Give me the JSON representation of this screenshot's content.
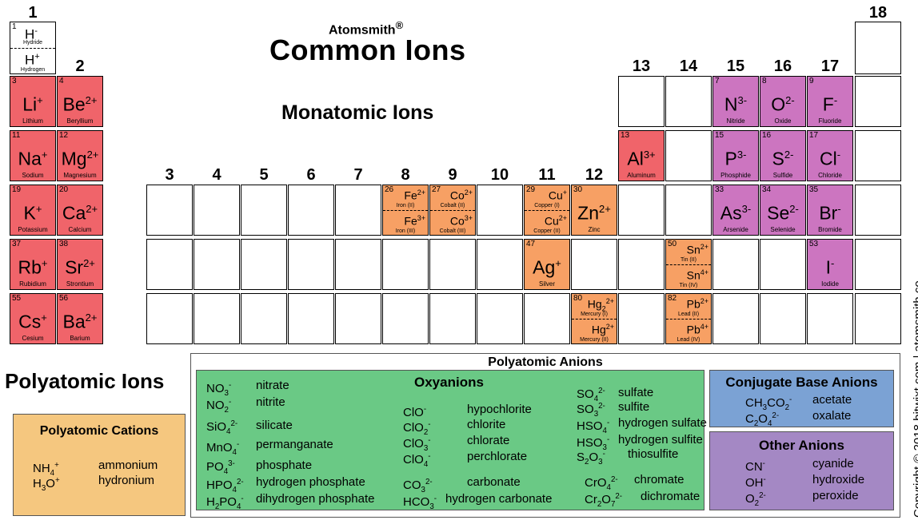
{
  "header": {
    "brand": "Atomsmith",
    "reg": "®",
    "title": "Common Ions",
    "section_monatomic": "Monatomic Ions",
    "section_polyatomic": "Polyatomic Ions",
    "copyright": "Copyright © 2018 bitwixt.com | atomsmith.co"
  },
  "groups": [
    "1",
    "2",
    "3",
    "4",
    "5",
    "6",
    "7",
    "8",
    "9",
    "10",
    "11",
    "12",
    "13",
    "14",
    "15",
    "16",
    "17",
    "18"
  ],
  "hydrogen": {
    "num": "1",
    "top_ion": "H",
    "top_charge": "-",
    "top_name": "Hydride",
    "bot_ion": "H",
    "bot_charge": "+",
    "bot_name": "Hydrogen"
  },
  "elements": {
    "Li": {
      "num": "3",
      "sym": "Li",
      "charge": "+",
      "name": "Lithium"
    },
    "Be": {
      "num": "4",
      "sym": "Be",
      "charge": "2+",
      "name": "Beryllium"
    },
    "Na": {
      "num": "11",
      "sym": "Na",
      "charge": "+",
      "name": "Sodium"
    },
    "Mg": {
      "num": "12",
      "sym": "Mg",
      "charge": "2+",
      "name": "Magnesium"
    },
    "K": {
      "num": "19",
      "sym": "K",
      "charge": "+",
      "name": "Potassium"
    },
    "Ca": {
      "num": "20",
      "sym": "Ca",
      "charge": "2+",
      "name": "Calcium"
    },
    "Rb": {
      "num": "37",
      "sym": "Rb",
      "charge": "+",
      "name": "Rubidium"
    },
    "Sr": {
      "num": "38",
      "sym": "Sr",
      "charge": "2+",
      "name": "Strontium"
    },
    "Cs": {
      "num": "55",
      "sym": "Cs",
      "charge": "+",
      "name": "Cesium"
    },
    "Ba": {
      "num": "56",
      "sym": "Ba",
      "charge": "2+",
      "name": "Barium"
    },
    "Al": {
      "num": "13",
      "sym": "Al",
      "charge": "3+",
      "name": "Aluminum"
    },
    "N": {
      "num": "7",
      "sym": "N",
      "charge": "3-",
      "name": "Nitride"
    },
    "O": {
      "num": "8",
      "sym": "O",
      "charge": "2-",
      "name": "Oxide"
    },
    "F": {
      "num": "9",
      "sym": "F",
      "charge": "-",
      "name": "Fluoride"
    },
    "P": {
      "num": "15",
      "sym": "P",
      "charge": "3-",
      "name": "Phosphide"
    },
    "S": {
      "num": "16",
      "sym": "S",
      "charge": "2-",
      "name": "Sulfide"
    },
    "Cl": {
      "num": "17",
      "sym": "Cl",
      "charge": "-",
      "name": "Chloride"
    },
    "As": {
      "num": "33",
      "sym": "As",
      "charge": "3-",
      "name": "Arsenide"
    },
    "Se": {
      "num": "34",
      "sym": "Se",
      "charge": "2-",
      "name": "Selenide"
    },
    "Br": {
      "num": "35",
      "sym": "Br",
      "charge": "-",
      "name": "Bromide"
    },
    "I": {
      "num": "53",
      "sym": "I",
      "charge": "-",
      "name": "Iodide"
    },
    "Zn": {
      "num": "30",
      "sym": "Zn",
      "charge": "2+",
      "name": "Zinc"
    },
    "Ag": {
      "num": "47",
      "sym": "Ag",
      "charge": "+",
      "name": "Silver"
    }
  },
  "multi": {
    "Fe": {
      "num": "26",
      "a_sym": "Fe",
      "a_charge": "2+",
      "a_name": "Iron (II)",
      "b_sym": "Fe",
      "b_charge": "3+",
      "b_name": "Iron (III)"
    },
    "Co": {
      "num": "27",
      "a_sym": "Co",
      "a_charge": "2+",
      "a_name": "Cobalt (II)",
      "b_sym": "Co",
      "b_charge": "3+",
      "b_name": "Cobalt (III)"
    },
    "Cu": {
      "num": "29",
      "a_sym": "Cu",
      "a_charge": "+",
      "a_name": "Copper (I)",
      "b_sym": "Cu",
      "b_charge": "2+",
      "b_name": "Copper (II)"
    },
    "Sn": {
      "num": "50",
      "a_sym": "Sn",
      "a_charge": "2+",
      "a_name": "Tin (II)",
      "b_sym": "Sn",
      "b_charge": "4+",
      "b_name": "Tin (IV)"
    },
    "Hg": {
      "num": "80",
      "a_sym": "Hg",
      "a_sub": "2",
      "a_charge": "2+",
      "a_name": "Mercury (I)",
      "b_sym": "Hg",
      "b_charge": "2+",
      "b_name": "Mercury (II)"
    },
    "Pb": {
      "num": "82",
      "a_sym": "Pb",
      "a_charge": "2+",
      "a_name": "Lead (II)",
      "b_sym": "Pb",
      "b_charge": "4+",
      "b_name": "Lead (IV)"
    }
  },
  "cations": {
    "title": "Polyatomic Cations",
    "items": [
      {
        "name": "ammonium"
      },
      {
        "name": "hydronium"
      }
    ]
  },
  "anions": {
    "title": "Polyatomic Anions",
    "oxy_title": "Oxyanions",
    "oxy": {
      "nitrate": "nitrate",
      "nitrite": "nitrite",
      "silicate": "silicate",
      "permanganate": "permanganate",
      "phosphate": "phosphate",
      "hydrogen_phosphate": "hydrogen phosphate",
      "dihydrogen_phosphate": "dihydrogen phosphate",
      "hypochlorite": "hypochlorite",
      "chlorite": "chlorite",
      "chlorate": "chlorate",
      "perchlorate": "perchlorate",
      "carbonate": "carbonate",
      "hydrogen_carbonate": "hydrogen carbonate",
      "sulfate": "sulfate",
      "sulfite": "sulfite",
      "hydrogen_sulfate": "hydrogen sulfate",
      "hydrogen_sulfite": "hydrogen sulfite",
      "thiosulfite": "thiosulfite",
      "chromate": "chromate",
      "dichromate": "dichromate"
    },
    "conj_title": "Conjugate Base Anions",
    "conj": {
      "acetate": "acetate",
      "oxalate": "oxalate"
    },
    "other_title": "Other Anions",
    "other": {
      "cyanide": "cyanide",
      "hydroxide": "hydroxide",
      "peroxide": "peroxide"
    }
  },
  "colors": {
    "alkali": "#f0646a",
    "transition": "#f7a064",
    "nonmetal_anion": "#cc75c0",
    "oxyanion_box": "#6ac985",
    "conjugate_box": "#7ba2d4",
    "other_box": "#a488c4",
    "cation_box": "#f5c77f"
  }
}
